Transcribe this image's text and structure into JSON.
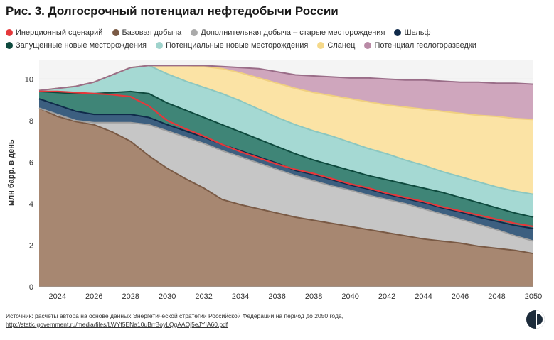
{
  "chart_data": {
    "type": "area",
    "title": "Рис. 3. Долгосрочный потенциал нефтедобычи России",
    "ylabel": "млн барр. в день",
    "xlabel": "",
    "ylim": [
      0,
      10.9
    ],
    "xlim": [
      2023,
      2050
    ],
    "yticks": [
      0,
      2,
      4,
      6,
      8,
      10
    ],
    "xticks": [
      2024,
      2026,
      2028,
      2030,
      2032,
      2034,
      2036,
      2038,
      2040,
      2042,
      2044,
      2046,
      2048,
      2050
    ],
    "grid": true,
    "legend_position": "top",
    "x": [
      2023,
      2024,
      2025,
      2026,
      2027,
      2028,
      2029,
      2030,
      2031,
      2032,
      2033,
      2034,
      2035,
      2036,
      2037,
      2038,
      2039,
      2040,
      2041,
      2042,
      2043,
      2044,
      2045,
      2046,
      2047,
      2048,
      2049,
      2050
    ],
    "series": [
      {
        "name": "Базовая добыча",
        "color": "#a78771",
        "line": "#7a5a45",
        "values": [
          8.6,
          8.2,
          7.95,
          7.8,
          7.45,
          7.0,
          6.3,
          5.7,
          5.2,
          4.75,
          4.2,
          3.95,
          3.75,
          3.55,
          3.35,
          3.2,
          3.05,
          2.9,
          2.75,
          2.6,
          2.45,
          2.3,
          2.2,
          2.1,
          1.95,
          1.85,
          1.75,
          1.6
        ]
      },
      {
        "name": "Дополнительная добыча – старые месторождения",
        "color": "#c6c6c6",
        "line": "#a0a0a0",
        "values": [
          8.6,
          8.3,
          8.0,
          7.9,
          7.9,
          7.9,
          7.8,
          7.5,
          7.2,
          6.9,
          6.55,
          6.25,
          5.95,
          5.65,
          5.35,
          5.1,
          4.85,
          4.65,
          4.4,
          4.2,
          4.0,
          3.75,
          3.5,
          3.25,
          3.0,
          2.75,
          2.45,
          2.2
        ]
      },
      {
        "name": "Шельф",
        "color": "#3c5f80",
        "line": "#0f2a4a",
        "values": [
          9.05,
          8.75,
          8.45,
          8.3,
          8.3,
          8.3,
          8.15,
          7.8,
          7.5,
          7.2,
          6.85,
          6.55,
          6.25,
          5.95,
          5.6,
          5.4,
          5.15,
          4.9,
          4.7,
          4.45,
          4.25,
          4.05,
          3.8,
          3.6,
          3.35,
          3.15,
          2.95,
          2.8
        ]
      },
      {
        "name": "Запущенные новые месторождения",
        "color": "#3f8577",
        "line": "#0e4a3e",
        "values": [
          9.4,
          9.35,
          9.3,
          9.3,
          9.35,
          9.4,
          9.3,
          8.85,
          8.5,
          8.15,
          7.8,
          7.45,
          7.1,
          6.75,
          6.4,
          6.1,
          5.85,
          5.6,
          5.35,
          5.15,
          4.95,
          4.75,
          4.55,
          4.3,
          4.05,
          3.8,
          3.55,
          3.35
        ]
      },
      {
        "name": "Потенциальные новые месторождения",
        "color": "#a5d9d3",
        "line": "#8cc7c0",
        "values": [
          9.45,
          9.55,
          9.65,
          9.85,
          10.2,
          10.55,
          10.65,
          10.25,
          9.9,
          9.6,
          9.3,
          8.95,
          8.55,
          8.15,
          7.8,
          7.5,
          7.25,
          6.95,
          6.65,
          6.4,
          6.1,
          5.85,
          5.55,
          5.3,
          5.05,
          4.8,
          4.6,
          4.45
        ]
      },
      {
        "name": "Сланец",
        "color": "#fbe3a5",
        "line": "#f0d080",
        "values": [
          9.45,
          9.55,
          9.65,
          9.85,
          10.2,
          10.55,
          10.65,
          10.65,
          10.65,
          10.6,
          10.5,
          10.3,
          10.05,
          9.8,
          9.55,
          9.35,
          9.2,
          9.05,
          8.9,
          8.75,
          8.65,
          8.55,
          8.45,
          8.35,
          8.25,
          8.2,
          8.1,
          8.05
        ]
      },
      {
        "name": "Потенциал геологоразведки",
        "color": "#cfa6bd",
        "line": "#9a6d88",
        "values": [
          9.45,
          9.55,
          9.65,
          9.85,
          10.2,
          10.55,
          10.65,
          10.65,
          10.65,
          10.65,
          10.6,
          10.55,
          10.5,
          10.35,
          10.2,
          10.15,
          10.1,
          10.05,
          10.05,
          10.0,
          9.95,
          9.95,
          9.9,
          9.85,
          9.85,
          9.8,
          9.8,
          9.75
        ]
      }
    ],
    "inertial": {
      "name": "Инерционный сценарий",
      "color": "#e5383b",
      "values": [
        9.4,
        9.4,
        9.35,
        9.3,
        9.25,
        9.15,
        8.7,
        8.0,
        7.6,
        7.25,
        6.85,
        6.5,
        6.2,
        5.9,
        5.65,
        5.45,
        5.2,
        4.95,
        4.75,
        4.5,
        4.3,
        4.1,
        3.85,
        3.65,
        3.45,
        3.25,
        3.05,
        2.9
      ]
    }
  },
  "legend": [
    {
      "label": "Инерционный сценарий",
      "color": "#e5383b"
    },
    {
      "label": "Базовая добыча",
      "color": "#7a5a45"
    },
    {
      "label": "Дополнительная добыча – старые месторождения",
      "color": "#aaaaaa"
    },
    {
      "label": "Шельф",
      "color": "#0f2a4a"
    },
    {
      "label": "Запущенные новые месторождения",
      "color": "#0e4a3e"
    },
    {
      "label": "Потенциальные новые месторождения",
      "color": "#9fd3cc"
    },
    {
      "label": "Сланец",
      "color": "#f5d98a"
    },
    {
      "label": "Потенциал геологоразведки",
      "color": "#b98aa6"
    }
  ],
  "source": {
    "line1": "Источник: расчеты автора на основе данных Энергетической стратегии Российской Федерации на период до 2050 года,",
    "link": "http://static.government.ru/media/files/LWYf5ENa10uBrrBoyLQgAAOj5eJYIA60.pdf"
  },
  "logo_icon": "half-circle-logo-icon"
}
